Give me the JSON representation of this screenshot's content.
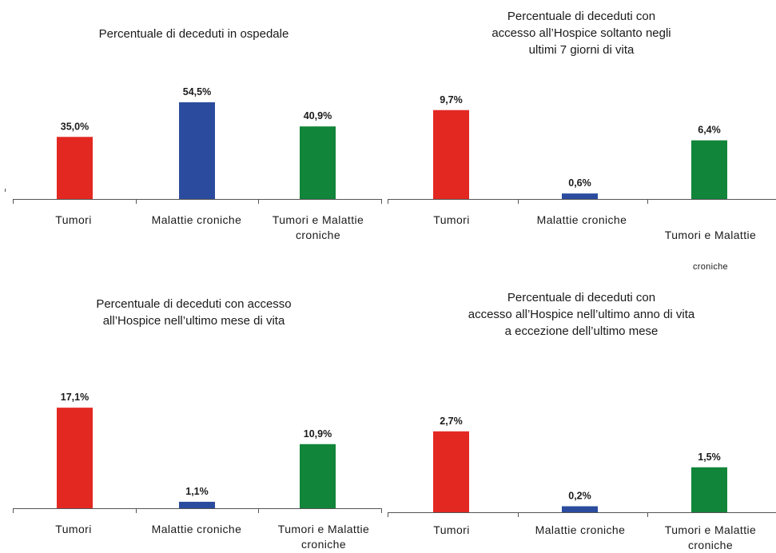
{
  "colors": {
    "tumori": "#e32822",
    "croniche": "#2b4c9e",
    "entrambi": "#118539"
  },
  "chart_data": [
    {
      "type": "bar",
      "title": "Percentuale di deceduti in ospedale",
      "categories": [
        "Tumori",
        "Malattie croniche",
        "Tumori e Malattie\ncroniche"
      ],
      "values": [
        35.0,
        54.5,
        40.9
      ],
      "value_labels": [
        "35,0%",
        "54,5%",
        "40,9%"
      ],
      "ylim": [
        0,
        100
      ],
      "grid": false
    },
    {
      "type": "bar",
      "title": "Percentuale di deceduti con\naccesso all’Hospice soltanto negli\nultimi 7 giorni di vita",
      "categories": [
        "Tumori",
        "Malattie croniche",
        "Tumori e Malattie"
      ],
      "category_sub": [
        "",
        "",
        "croniche"
      ],
      "values": [
        9.7,
        0.6,
        6.4
      ],
      "value_labels": [
        "9,7%",
        "0,6%",
        "6,4%"
      ],
      "ylim": [
        0,
        15
      ],
      "grid": false
    },
    {
      "type": "bar",
      "title": "Percentuale di deceduti con accesso\nall’Hospice nell’ultimo mese di vita",
      "categories": [
        "Tumori",
        "Malattie croniche",
        "Tumori e Malattie\ncroniche"
      ],
      "values": [
        17.1,
        1.1,
        10.9
      ],
      "value_labels": [
        "17,1%",
        "1,1%",
        "10,9%"
      ],
      "ylim": [
        0,
        25
      ],
      "grid": false
    },
    {
      "type": "bar",
      "title": "Percentuale di deceduti con\naccesso all’Hospice nell’ultimo anno di vita\na eccezione dell’ultimo mese",
      "categories": [
        "Tumori",
        "Malattie croniche",
        "Tumori e Malattie\ncroniche"
      ],
      "values": [
        2.7,
        0.2,
        1.5
      ],
      "value_labels": [
        "2,7%",
        "0,2%",
        "1,5%"
      ],
      "ylim": [
        0,
        4.4
      ],
      "grid": false
    }
  ]
}
